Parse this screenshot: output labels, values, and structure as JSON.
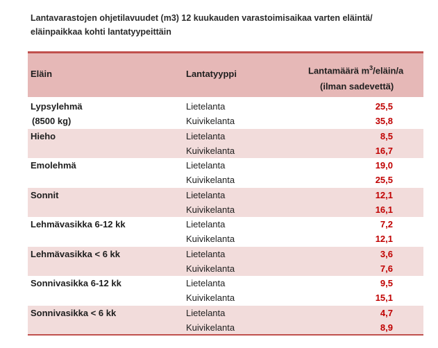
{
  "title": {
    "line1": "Lantavarastojen ohjetilavuudet (m3) 12 kuukauden varastoimisaikaa varten eläintä/",
    "line2": "eläinpaikkaa kohti lantatyypeittäin"
  },
  "header": {
    "animal": "Eläin",
    "manure_type": "Lantatyyppi",
    "amount_line1_pre": "Lantamäärä m",
    "amount_sup": "3",
    "amount_line1_post": "/eläin/a",
    "amount_line2": "(ilman sadevettä)"
  },
  "rows": [
    {
      "animal": "Lypsylehmä",
      "animal_sub": "(8500 kg)",
      "type1": "Lietelanta",
      "value1": "25,5",
      "type2": "Kuivikelanta",
      "value2": "35,8"
    },
    {
      "animal": "Hieho",
      "animal_sub": "",
      "type1": "Lietelanta",
      "value1": "8,5",
      "type2": "Kuivikelanta",
      "value2": "16,7"
    },
    {
      "animal": "Emolehmä",
      "animal_sub": "",
      "type1": "Lietelanta",
      "value1": "19,0",
      "type2": "Kuivikelanta",
      "value2": "25,5"
    },
    {
      "animal": "Sonnit",
      "animal_sub": "",
      "type1": "Lietelanta",
      "value1": "12,1",
      "type2": "Kuivikelanta",
      "value2": "16,1"
    },
    {
      "animal": "Lehmävasikka 6-12 kk",
      "animal_sub": "",
      "type1": "Lietelanta",
      "value1": "7,2",
      "type2": "Kuivikelanta",
      "value2": "12,1"
    },
    {
      "animal": "Lehmävasikka < 6 kk",
      "animal_sub": "",
      "type1": "Lietelanta",
      "value1": "3,6",
      "type2": "Kuivikelanta",
      "value2": "7,6"
    },
    {
      "animal": "Sonnivasikka 6-12 kk",
      "animal_sub": "",
      "type1": "Lietelanta",
      "value1": "9,5",
      "type2": "Kuivikelanta",
      "value2": "15,1"
    },
    {
      "animal": "Sonnivasikka < 6 kk",
      "animal_sub": "",
      "type1": "Lietelanta",
      "value1": "4,7",
      "type2": "Kuivikelanta",
      "value2": "8,9"
    }
  ],
  "colors": {
    "header_bg": "#e6b8b7",
    "shaded_row_bg": "#f2dcdb",
    "rule": "#c0504d",
    "value_text": "#c00000"
  }
}
